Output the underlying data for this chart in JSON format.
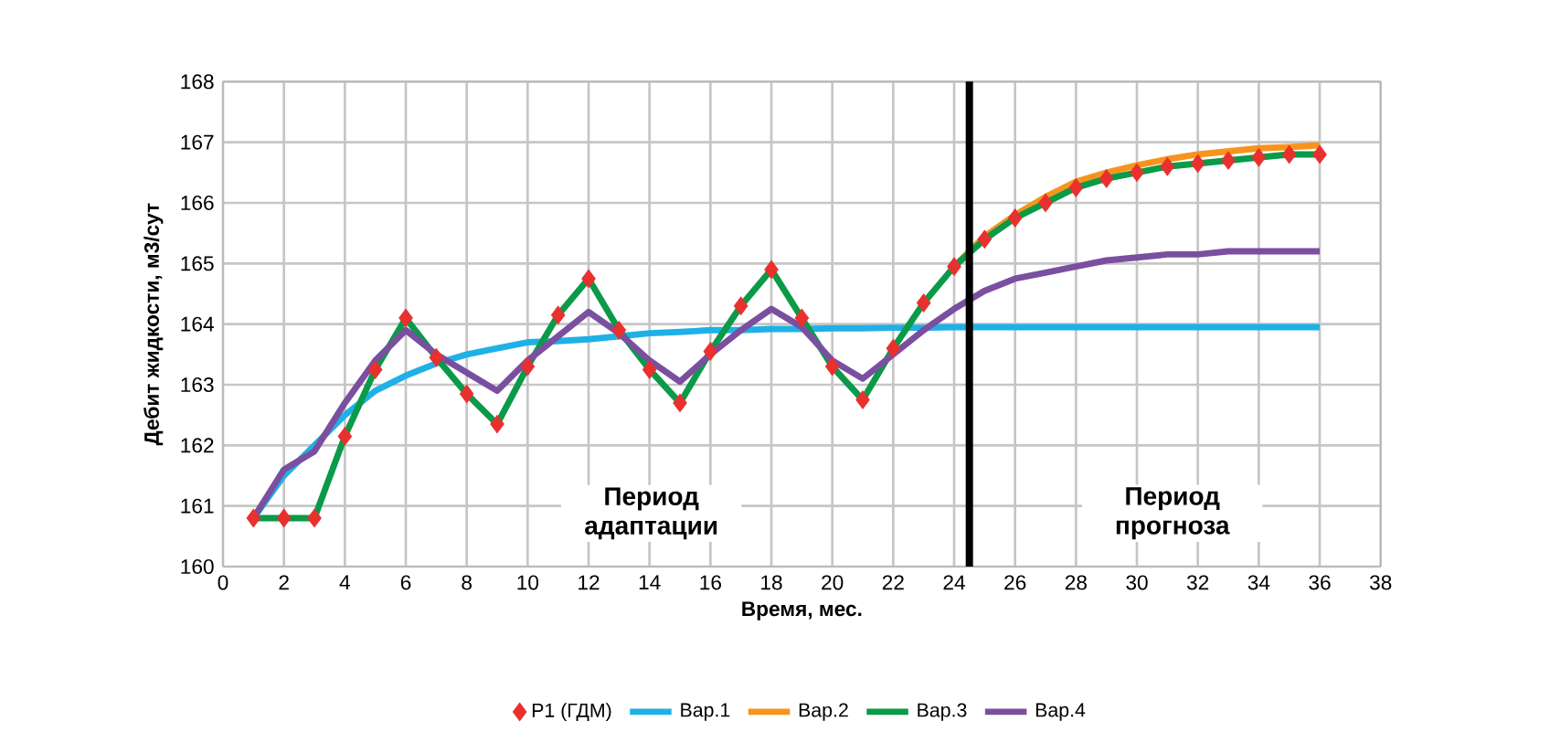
{
  "chart_data": {
    "type": "line",
    "xlabel": "Время, мес.",
    "ylabel": "Дебит жидкости, м3/сут",
    "x": [
      1,
      2,
      3,
      4,
      5,
      6,
      7,
      8,
      9,
      10,
      11,
      12,
      13,
      14,
      15,
      16,
      17,
      18,
      19,
      20,
      21,
      22,
      23,
      24,
      25,
      26,
      27,
      28,
      29,
      30,
      31,
      32,
      33,
      34,
      35,
      36
    ],
    "xlim": [
      0,
      38
    ],
    "xticks": [
      0,
      2,
      4,
      6,
      8,
      10,
      12,
      14,
      16,
      18,
      20,
      22,
      24,
      26,
      28,
      30,
      32,
      34,
      36,
      38
    ],
    "ylim": [
      160,
      168
    ],
    "yticks": [
      160,
      161,
      162,
      163,
      164,
      165,
      166,
      167,
      168
    ],
    "grid": true,
    "legend": "bottom",
    "series": [
      {
        "name": "Вар.1",
        "color": "#1fb1e6",
        "marker": "none",
        "values": [
          160.8,
          161.5,
          162.0,
          162.5,
          162.9,
          163.15,
          163.35,
          163.5,
          163.6,
          163.7,
          163.72,
          163.75,
          163.8,
          163.85,
          163.87,
          163.9,
          163.9,
          163.92,
          163.92,
          163.93,
          163.93,
          163.94,
          163.94,
          163.95,
          163.95,
          163.95,
          163.95,
          163.95,
          163.95,
          163.95,
          163.95,
          163.95,
          163.95,
          163.95,
          163.95,
          163.95
        ]
      },
      {
        "name": "Вар.2",
        "color": "#f7941d",
        "marker": "none",
        "values": [
          null,
          null,
          null,
          null,
          null,
          null,
          null,
          null,
          null,
          null,
          null,
          null,
          null,
          null,
          null,
          null,
          null,
          null,
          null,
          null,
          null,
          null,
          null,
          164.95,
          165.45,
          165.8,
          166.1,
          166.35,
          166.5,
          166.62,
          166.72,
          166.8,
          166.85,
          166.9,
          166.92,
          166.95
        ]
      },
      {
        "name": "Вар.3",
        "color": "#0a9a48",
        "marker": "none",
        "values": [
          160.8,
          160.8,
          160.8,
          162.15,
          163.25,
          164.1,
          163.45,
          162.85,
          162.35,
          163.3,
          164.15,
          164.75,
          163.9,
          163.25,
          162.7,
          163.55,
          164.3,
          164.9,
          164.1,
          163.3,
          162.75,
          163.6,
          164.35,
          164.95,
          165.4,
          165.75,
          166.0,
          166.25,
          166.4,
          166.5,
          166.6,
          166.65,
          166.7,
          166.75,
          166.8,
          166.8
        ]
      },
      {
        "name": "Вар.4",
        "color": "#7b4fa0",
        "marker": "none",
        "values": [
          160.8,
          161.6,
          161.9,
          162.7,
          163.4,
          163.9,
          163.5,
          163.2,
          162.9,
          163.4,
          163.8,
          164.2,
          163.85,
          163.4,
          163.05,
          163.5,
          163.9,
          164.25,
          163.95,
          163.4,
          163.1,
          163.5,
          163.9,
          164.25,
          164.55,
          164.75,
          164.85,
          164.95,
          165.05,
          165.1,
          165.15,
          165.15,
          165.2,
          165.2,
          165.2,
          165.2
        ]
      },
      {
        "name": "Р1 (ГДМ)",
        "type": "scatter",
        "color": "#e8312f",
        "marker": "diamond",
        "values": [
          160.8,
          160.8,
          160.8,
          162.15,
          163.25,
          164.1,
          163.45,
          162.85,
          162.35,
          163.3,
          164.15,
          164.75,
          163.9,
          163.25,
          162.7,
          163.55,
          164.3,
          164.9,
          164.1,
          163.3,
          162.75,
          163.6,
          164.35,
          164.95,
          165.4,
          165.75,
          166.0,
          166.25,
          166.4,
          166.5,
          166.6,
          166.65,
          166.7,
          166.75,
          166.8,
          166.8
        ]
      }
    ],
    "ref_lines": [
      {
        "axis": "x",
        "value": 24.5,
        "color": "#000000"
      }
    ],
    "annotations": [
      "Период адаптации",
      "Период прогноза"
    ]
  }
}
